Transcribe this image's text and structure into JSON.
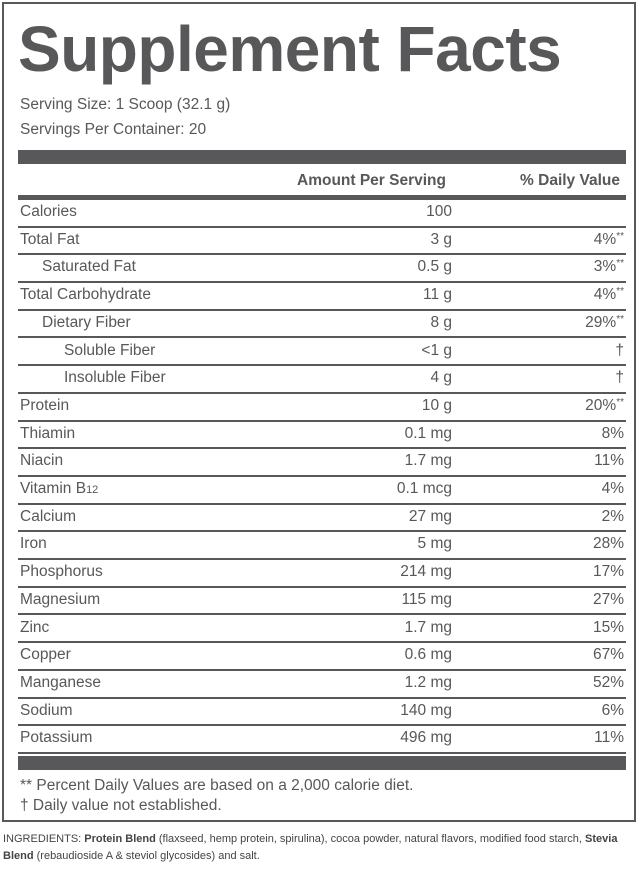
{
  "header": {
    "title": "Supplement Facts",
    "serving_size": "Serving Size: 1 Scoop (32.1 g)",
    "servings_per_container": "Servings Per Container: 20"
  },
  "table": {
    "columns": [
      "Amount Per Serving",
      "% Daily Value"
    ],
    "rows": [
      {
        "name": "Calories",
        "amount": "100",
        "indent": 0
      },
      {
        "name": "Total Fat",
        "amount": "3 g",
        "dv": "4%",
        "mark": "**",
        "indent": 0
      },
      {
        "name": "Saturated Fat",
        "amount": "0.5 g",
        "dv": "3%",
        "mark": "**",
        "indent": 1
      },
      {
        "name": "Total Carbohydrate",
        "amount": "11 g",
        "dv": "4%",
        "mark": "**",
        "indent": 0
      },
      {
        "name": "Dietary Fiber",
        "amount": "8 g",
        "dv": "29%",
        "mark": "**",
        "indent": 1
      },
      {
        "name": "Soluble Fiber",
        "amount": "<1 g",
        "dv": "†",
        "indent": 2
      },
      {
        "name": "Insoluble Fiber",
        "amount": "4 g",
        "dv": "†",
        "indent": 2
      },
      {
        "name": "Protein",
        "amount": "10 g",
        "dv": "20%",
        "mark": "**",
        "indent": 0
      },
      {
        "name": "Thiamin",
        "amount": "0.1 mg",
        "dv": "8%",
        "indent": 0
      },
      {
        "name": "Niacin",
        "amount": "1.7 mg",
        "dv": "11%",
        "indent": 0
      },
      {
        "name": "Vitamin B",
        "name_sub": "12",
        "amount": "0.1 mcg",
        "dv": "4%",
        "indent": 0
      },
      {
        "name": "Calcium",
        "amount": "27 mg",
        "dv": "2%",
        "indent": 0
      },
      {
        "name": "Iron",
        "amount": "5 mg",
        "dv": "28%",
        "indent": 0
      },
      {
        "name": "Phosphorus",
        "amount": "214 mg",
        "dv": "17%",
        "indent": 0
      },
      {
        "name": "Magnesium",
        "amount": "115 mg",
        "dv": "27%",
        "indent": 0
      },
      {
        "name": "Zinc",
        "amount": "1.7 mg",
        "dv": "15%",
        "indent": 0
      },
      {
        "name": "Copper",
        "amount": "0.6 mg",
        "dv": "67%",
        "indent": 0
      },
      {
        "name": "Manganese",
        "amount": "1.2 mg",
        "dv": "52%",
        "indent": 0
      },
      {
        "name": "Sodium",
        "amount": "140 mg",
        "dv": "6%",
        "indent": 0
      },
      {
        "name": "Potassium",
        "amount": "496 mg",
        "dv": "11%",
        "indent": 0
      }
    ]
  },
  "footnotes": [
    "** Percent Daily Values are based on a 2,000 calorie diet.",
    "† Daily value not established."
  ],
  "ingredients": [
    {
      "text": "INGREDIENTS: ",
      "bold": false
    },
    {
      "text": "Protein Blend",
      "bold": true
    },
    {
      "text": " (flaxseed, hemp protein, spirulina), cocoa powder, natural flavors, modified food starch, ",
      "bold": false
    },
    {
      "text": "Stevia Blend",
      "bold": true
    },
    {
      "text": " (rebaudioside A & steviol glycosides) and salt.",
      "bold": false
    }
  ]
}
